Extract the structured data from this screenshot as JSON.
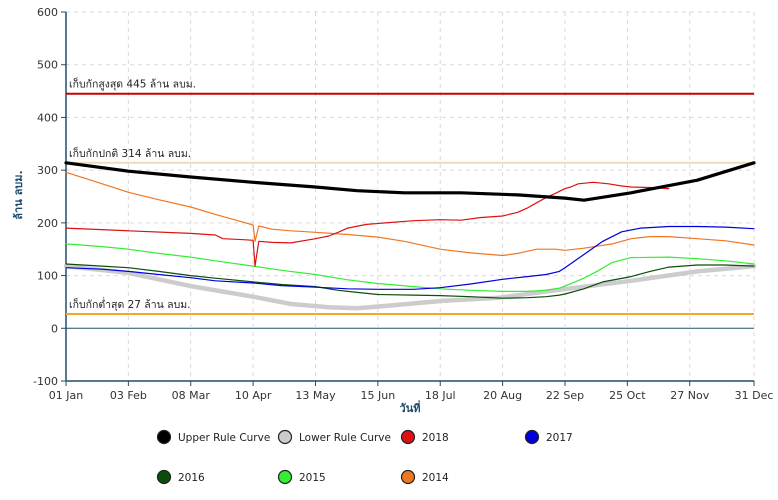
{
  "chart_data": {
    "type": "line",
    "xlabel": "วันที่",
    "ylabel": "ล้าน ลบม.",
    "ylim": [
      -100,
      600
    ],
    "yticks": [
      -100,
      0,
      100,
      200,
      300,
      400,
      500,
      600
    ],
    "xlim": [
      1,
      365
    ],
    "xticks": [
      {
        "day": 1,
        "label": "01 Jan"
      },
      {
        "day": 34,
        "label": "03 Feb"
      },
      {
        "day": 67,
        "label": "08 Mar"
      },
      {
        "day": 100,
        "label": "10 Apr"
      },
      {
        "day": 133,
        "label": "13 May"
      },
      {
        "day": 166,
        "label": "15 Jun"
      },
      {
        "day": 199,
        "label": "18 Jul"
      },
      {
        "day": 232,
        "label": "20 Aug"
      },
      {
        "day": 265,
        "label": "22 Sep"
      },
      {
        "day": 298,
        "label": "25 Oct"
      },
      {
        "day": 331,
        "label": "27 Nov"
      },
      {
        "day": 365,
        "label": "31 Dec"
      }
    ],
    "grid": true,
    "legend_position": "bottom",
    "reference_lines": [
      {
        "label": "เก็บกักสูงสุด 445 ล้าน ลบม.",
        "value": 445,
        "color": "#cc0000"
      },
      {
        "label": "เก็บกักปกติ 314 ล้าน ลบม.",
        "value": 314,
        "color": "#f2d9b8"
      },
      {
        "label": "เก็บกักต่ำสุด 27 ล้าน ลบม.",
        "value": 27,
        "color": "#f5a623"
      }
    ],
    "series": [
      {
        "name": "Upper Rule Curve",
        "color": "#000000",
        "x": [
          1,
          34,
          67,
          100,
          133,
          155,
          180,
          210,
          240,
          265,
          275,
          300,
          335,
          365
        ],
        "y": [
          314,
          298,
          287,
          277,
          268,
          261,
          257,
          257,
          253,
          247,
          243,
          257,
          281,
          314
        ]
      },
      {
        "name": "Lower Rule Curve",
        "color": "#cccccc",
        "x": [
          1,
          34,
          67,
          100,
          120,
          140,
          155,
          175,
          200,
          230,
          260,
          300,
          335,
          365
        ],
        "y": [
          118,
          105,
          80,
          60,
          46,
          40,
          38,
          44,
          52,
          58,
          72,
          90,
          108,
          118
        ]
      },
      {
        "name": "2018",
        "color": "#dd1111",
        "x": [
          1,
          34,
          67,
          80,
          84,
          95,
          100,
          101,
          103,
          110,
          120,
          133,
          140,
          145,
          150,
          160,
          170,
          185,
          199,
          210,
          220,
          232,
          240,
          245,
          250,
          255,
          260,
          265,
          268,
          272,
          280,
          288,
          295,
          300,
          310,
          320
        ],
        "y": [
          190,
          185,
          180,
          177,
          170,
          168,
          167,
          118,
          165,
          163,
          162,
          170,
          175,
          182,
          190,
          197,
          200,
          204,
          206,
          205,
          210,
          213,
          220,
          228,
          238,
          248,
          256,
          265,
          268,
          274,
          277,
          274,
          270,
          268,
          267,
          265
        ]
      },
      {
        "name": "2017",
        "color": "#0000dd",
        "x": [
          1,
          20,
          34,
          50,
          67,
          80,
          100,
          115,
          133,
          150,
          166,
          185,
          199,
          215,
          232,
          245,
          255,
          262,
          265,
          275,
          285,
          295,
          305,
          320,
          335,
          350,
          365
        ],
        "y": [
          115,
          112,
          108,
          102,
          96,
          90,
          86,
          81,
          78,
          75,
          74,
          74,
          77,
          84,
          93,
          98,
          102,
          108,
          115,
          140,
          165,
          183,
          190,
          193,
          193,
          192,
          189
        ]
      },
      {
        "name": "2016",
        "color": "#0b4d0b",
        "x": [
          1,
          20,
          34,
          50,
          67,
          80,
          100,
          115,
          133,
          145,
          155,
          166,
          185,
          199,
          215,
          232,
          245,
          255,
          262,
          265,
          275,
          285,
          300,
          310,
          320,
          335,
          350,
          365
        ],
        "y": [
          122,
          118,
          115,
          108,
          100,
          95,
          88,
          83,
          79,
          72,
          68,
          64,
          63,
          62,
          60,
          57,
          58,
          60,
          63,
          65,
          75,
          88,
          98,
          108,
          116,
          120,
          120,
          118
        ]
      },
      {
        "name": "2015",
        "color": "#33ee33",
        "x": [
          1,
          20,
          34,
          50,
          67,
          80,
          100,
          115,
          133,
          150,
          166,
          185,
          199,
          215,
          232,
          245,
          255,
          262,
          265,
          275,
          283,
          290,
          300,
          320,
          335,
          350,
          365
        ],
        "y": [
          160,
          155,
          150,
          142,
          135,
          128,
          118,
          110,
          102,
          92,
          85,
          79,
          75,
          72,
          70,
          70,
          72,
          76,
          80,
          95,
          110,
          125,
          134,
          135,
          132,
          128,
          122
        ]
      },
      {
        "name": "2014",
        "color": "#ee7722",
        "x": [
          1,
          15,
          34,
          50,
          67,
          80,
          95,
          100,
          101,
          103,
          110,
          120,
          133,
          150,
          166,
          180,
          199,
          215,
          232,
          240,
          250,
          260,
          265,
          275,
          290,
          300,
          310,
          320,
          335,
          350,
          365
        ],
        "y": [
          296,
          280,
          258,
          244,
          230,
          216,
          201,
          196,
          165,
          194,
          188,
          185,
          182,
          178,
          173,
          165,
          150,
          143,
          138,
          142,
          150,
          150,
          148,
          152,
          160,
          170,
          174,
          174,
          170,
          166,
          158
        ]
      }
    ]
  }
}
